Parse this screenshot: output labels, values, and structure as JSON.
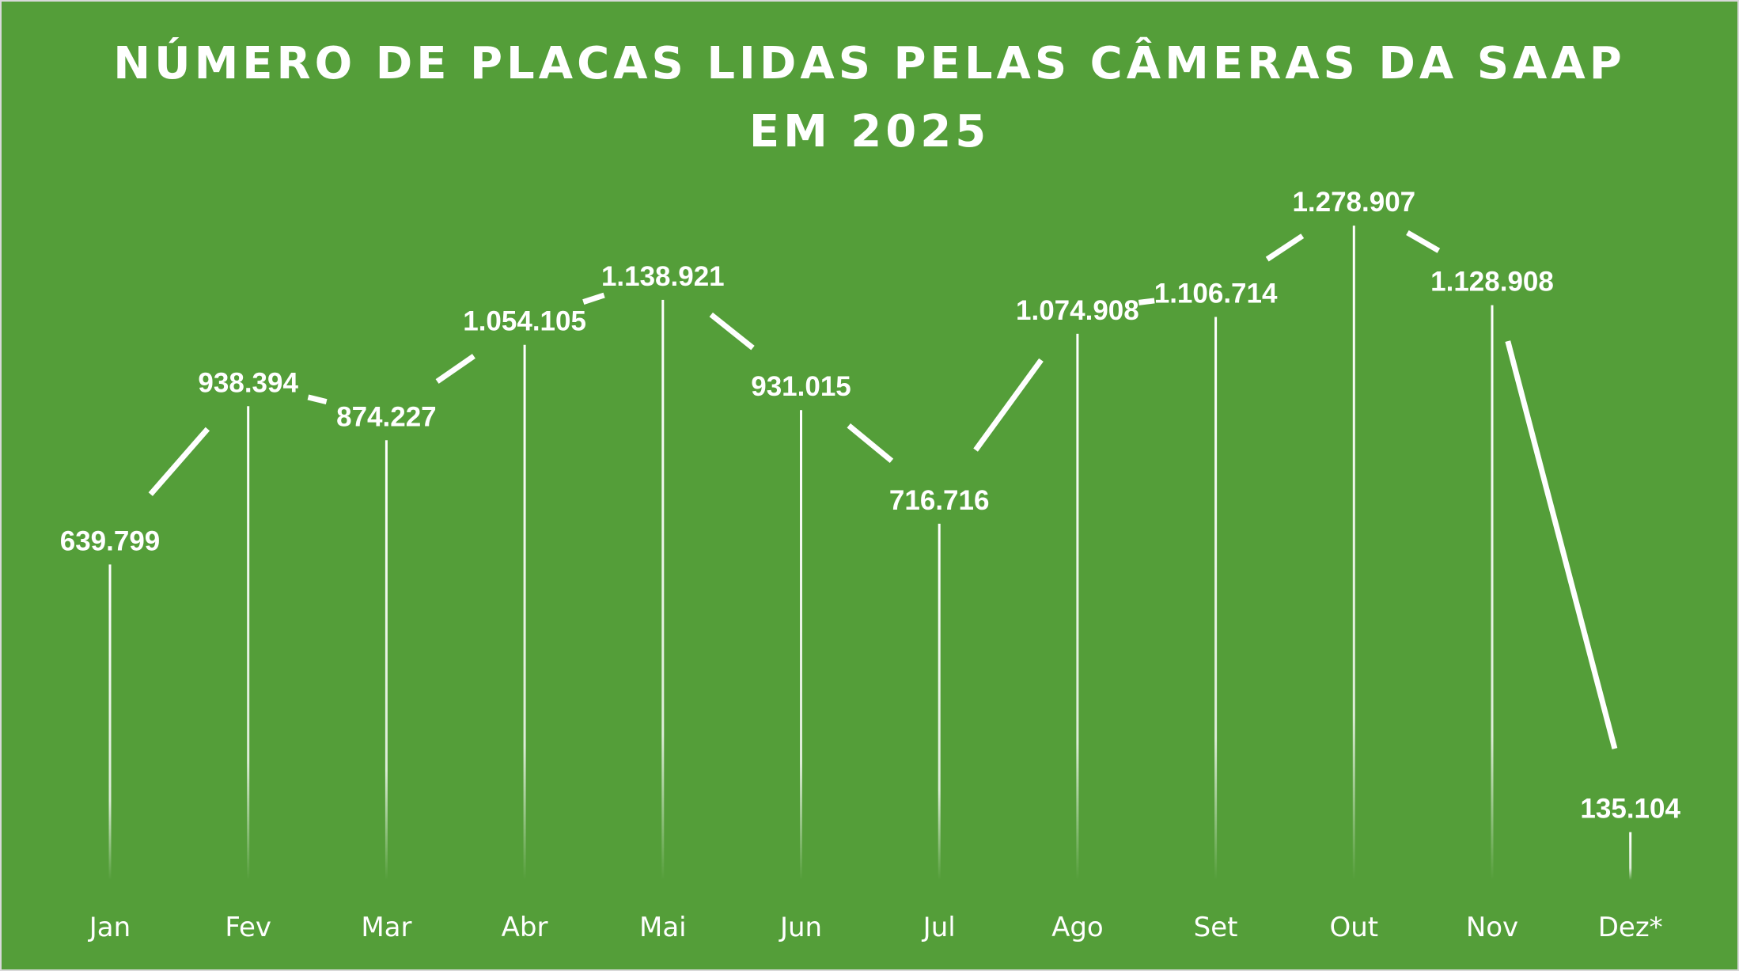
{
  "chart_data": {
    "type": "line",
    "title_line1": "NÚMERO DE PLACAS LIDAS PELAS CÂMERAS DA SAAP",
    "title_line2": "EM 2025",
    "categories": [
      "Jan",
      "Fev",
      "Mar",
      "Abr",
      "Mai",
      "Jun",
      "Jul",
      "Ago",
      "Set",
      "Out",
      "Nov",
      "Dez*"
    ],
    "values": [
      639799,
      938394,
      874227,
      1054105,
      1138921,
      931015,
      716716,
      1074908,
      1106714,
      1278907,
      1128908,
      135104
    ],
    "data_labels": [
      "639.799",
      "938.394",
      "874.227",
      "1.054.105",
      "1.138.921",
      "931.015",
      "716.716",
      "1.074.908",
      "1.106.714",
      "1.278.907",
      "1.128.908",
      "135.104"
    ],
    "xlabel": "",
    "ylabel": "",
    "ylim": [
      0,
      1400000
    ],
    "grid": false,
    "legend": "none",
    "colors": {
      "background": "#549e39",
      "line": "#ffffff",
      "text": "#ffffff",
      "border": "#d9d9d9"
    }
  }
}
